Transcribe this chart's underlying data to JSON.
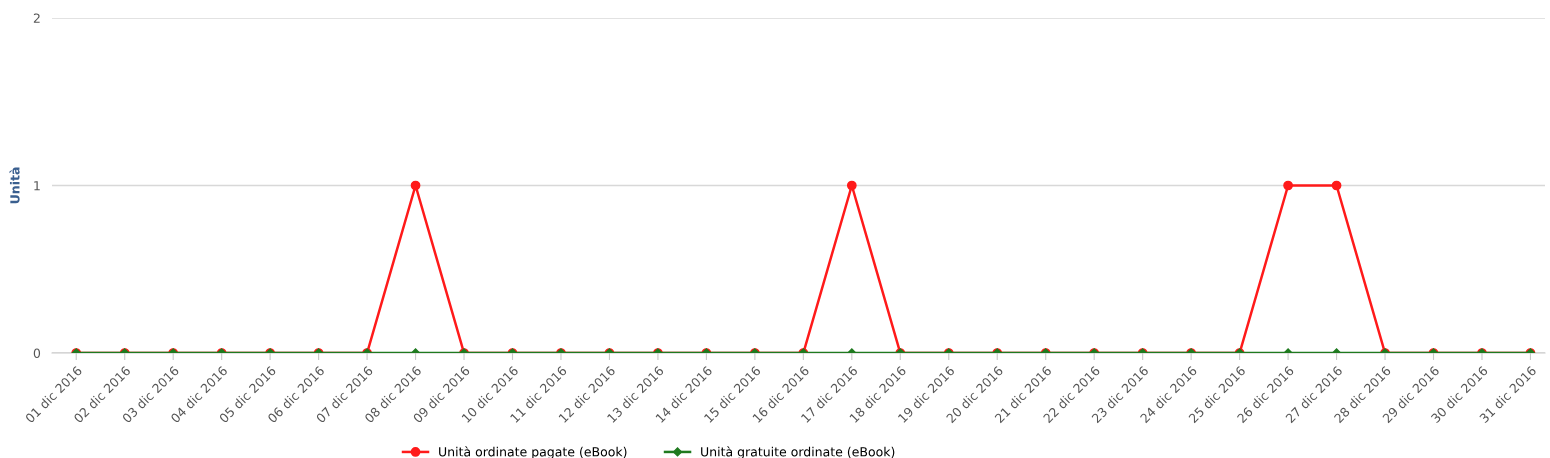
{
  "chart_data": {
    "type": "line",
    "ylabel": "Unità",
    "categories": [
      "01 dic 2016",
      "02 dic 2016",
      "03 dic 2016",
      "04 dic 2016",
      "05 dic 2016",
      "06 dic 2016",
      "07 dic 2016",
      "08 dic 2016",
      "09 dic 2016",
      "10 dic 2016",
      "11 dic 2016",
      "12 dic 2016",
      "13 dic 2016",
      "14 dic 2016",
      "15 dic 2016",
      "16 dic 2016",
      "17 dic 2016",
      "18 dic 2016",
      "19 dic 2016",
      "20 dic 2016",
      "21 dic 2016",
      "22 dic 2016",
      "23 dic 2016",
      "24 dic 2016",
      "25 dic 2016",
      "26 dic 2016",
      "27 dic 2016",
      "28 dic 2016",
      "29 dic 2016",
      "30 dic 2016",
      "31 dic 2016"
    ],
    "series": [
      {
        "name": "Unità ordinate pagate (eBook)",
        "color": "#ff1a1a",
        "marker": "circle",
        "values": [
          0,
          0,
          0,
          0,
          0,
          0,
          0,
          1,
          0,
          0,
          0,
          0,
          0,
          0,
          0,
          0,
          1,
          0,
          0,
          0,
          0,
          0,
          0,
          0,
          0,
          1,
          1,
          0,
          0,
          0,
          0
        ]
      },
      {
        "name": "Unità gratuite ordinate (eBook)",
        "color": "#1f7a1f",
        "marker": "diamond",
        "values": [
          0,
          0,
          0,
          0,
          0,
          0,
          0,
          0,
          0,
          0,
          0,
          0,
          0,
          0,
          0,
          0,
          0,
          0,
          0,
          0,
          0,
          0,
          0,
          0,
          0,
          0,
          0,
          0,
          0,
          0,
          0
        ]
      }
    ],
    "ylim": [
      0,
      2
    ],
    "yticks": [
      0,
      1,
      2
    ],
    "grid": "y",
    "legend": "bottom",
    "line_style": "solid"
  }
}
